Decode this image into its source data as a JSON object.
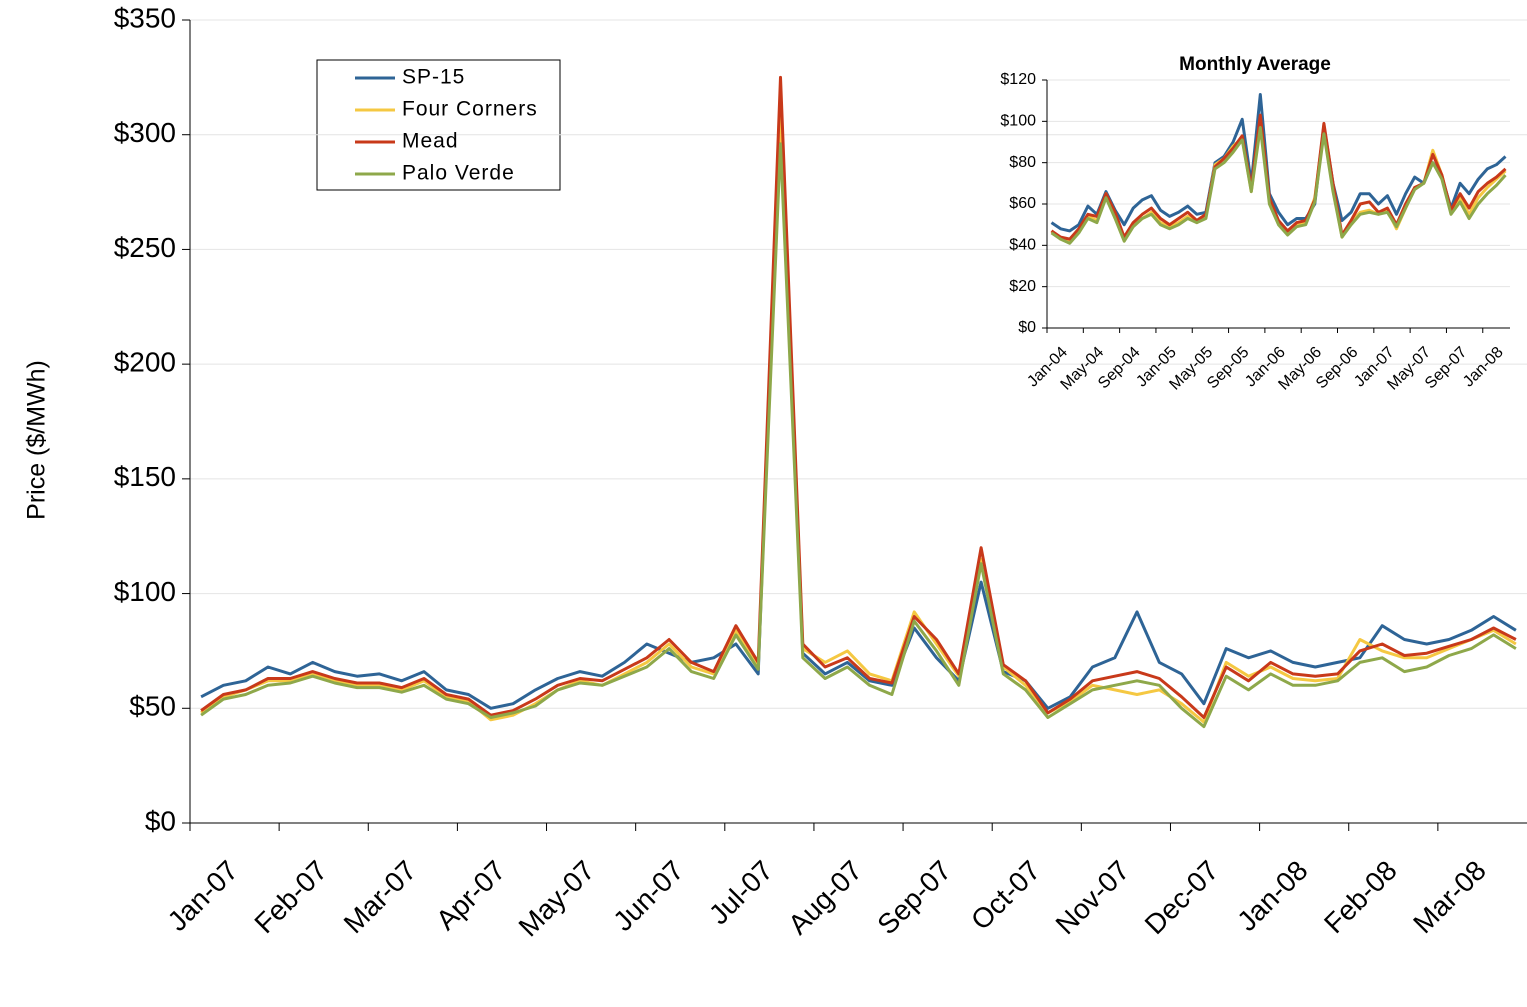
{
  "chart_data": [
    {
      "type": "line",
      "y_label": "Price ($/MWh)",
      "categories": [
        "Jan-07",
        null,
        null,
        null,
        "Feb-07",
        null,
        null,
        null,
        "Mar-07",
        null,
        null,
        null,
        "Apr-07",
        null,
        null,
        null,
        "May-07",
        null,
        null,
        null,
        "Jun-07",
        null,
        null,
        null,
        "Jul-07",
        null,
        null,
        null,
        "Aug-07",
        null,
        null,
        null,
        "Sep-07",
        null,
        null,
        null,
        "Oct-07",
        null,
        null,
        null,
        "Nov-07",
        null,
        null,
        null,
        "Dec-07",
        null,
        null,
        null,
        "Jan-08",
        null,
        null,
        null,
        "Feb-08",
        null,
        null,
        null,
        "Mar-08",
        null,
        null,
        null
      ],
      "series": [
        {
          "name": "SP-15",
          "color": "#2e6496",
          "values": [
            55,
            60,
            62,
            68,
            65,
            70,
            66,
            64,
            65,
            62,
            66,
            58,
            56,
            50,
            52,
            58,
            63,
            66,
            64,
            70,
            78,
            74,
            70,
            72,
            78,
            65,
            320,
            74,
            65,
            70,
            62,
            60,
            85,
            72,
            62,
            105,
            66,
            62,
            50,
            55,
            68,
            72,
            92,
            70,
            65,
            52,
            76,
            72,
            75,
            70,
            68,
            70,
            72,
            86,
            80,
            78,
            80,
            84,
            90,
            84
          ]
        },
        {
          "name": "Four Corners",
          "color": "#f5c842",
          "values": [
            48,
            55,
            58,
            62,
            62,
            65,
            62,
            60,
            60,
            58,
            62,
            55,
            53,
            45,
            47,
            52,
            58,
            62,
            60,
            65,
            70,
            78,
            68,
            65,
            84,
            68,
            310,
            76,
            70,
            75,
            65,
            62,
            92,
            78,
            64,
            115,
            68,
            60,
            48,
            53,
            60,
            58,
            56,
            58,
            52,
            44,
            70,
            64,
            68,
            63,
            62,
            63,
            80,
            75,
            72,
            72,
            76,
            80,
            84,
            78
          ]
        },
        {
          "name": "Mead",
          "color": "#c8391a",
          "values": [
            49,
            56,
            58,
            63,
            63,
            66,
            63,
            61,
            61,
            59,
            63,
            56,
            54,
            47,
            49,
            54,
            60,
            63,
            62,
            67,
            72,
            80,
            70,
            66,
            86,
            70,
            325,
            78,
            68,
            72,
            63,
            61,
            90,
            80,
            65,
            120,
            69,
            62,
            48,
            54,
            62,
            64,
            66,
            63,
            55,
            46,
            68,
            62,
            70,
            65,
            64,
            65,
            75,
            78,
            73,
            74,
            77,
            80,
            85,
            80
          ]
        },
        {
          "name": "Palo Verde",
          "color": "#8ea84a",
          "values": [
            47,
            54,
            56,
            60,
            61,
            64,
            61,
            59,
            59,
            57,
            60,
            54,
            52,
            46,
            48,
            51,
            58,
            61,
            60,
            64,
            68,
            76,
            66,
            63,
            82,
            67,
            296,
            72,
            63,
            68,
            60,
            56,
            88,
            75,
            60,
            113,
            65,
            58,
            46,
            52,
            58,
            60,
            62,
            60,
            50,
            42,
            64,
            58,
            65,
            60,
            60,
            62,
            70,
            72,
            66,
            68,
            73,
            76,
            82,
            76
          ]
        }
      ],
      "ylim": [
        0,
        350
      ],
      "yticks": [
        {
          "value": 0,
          "label": "$0"
        },
        {
          "value": 50,
          "label": "$50"
        },
        {
          "value": 100,
          "label": "$100"
        },
        {
          "value": 150,
          "label": "$150"
        },
        {
          "value": 200,
          "label": "$200"
        },
        {
          "value": 250,
          "label": "$250"
        },
        {
          "value": 300,
          "label": "$300"
        },
        {
          "value": 350,
          "label": "$350"
        }
      ],
      "grid": true,
      "legend": "upper left"
    },
    {
      "type": "line",
      "title": "Monthly Average",
      "categories": [
        "Jan-04",
        null,
        null,
        null,
        "May-04",
        null,
        null,
        null,
        "Sep-04",
        null,
        null,
        null,
        "Jan-05",
        null,
        null,
        null,
        "May-05",
        null,
        null,
        null,
        "Sep-05",
        null,
        null,
        null,
        "Jan-06",
        null,
        null,
        null,
        "May-06",
        null,
        null,
        null,
        "Sep-06",
        null,
        null,
        null,
        "Jan-07",
        null,
        null,
        null,
        "May-07",
        null,
        null,
        null,
        "Sep-07",
        null,
        null,
        null,
        "Jan-08",
        null,
        null
      ],
      "series": [
        {
          "color": "#2e6496",
          "values": [
            51,
            48,
            47,
            50,
            59,
            55,
            66,
            57,
            50,
            58,
            62,
            64,
            57,
            54,
            56,
            59,
            55,
            56,
            80,
            83,
            90,
            101,
            70,
            113,
            65,
            56,
            50,
            53,
            53,
            60,
            98,
            70,
            52,
            56,
            65,
            65,
            60,
            64,
            55,
            65,
            73,
            70,
            80,
            73,
            58,
            70,
            65,
            72,
            77,
            79,
            83
          ]
        },
        {
          "color": "#f5c842",
          "values": [
            47,
            43,
            42,
            47,
            54,
            52,
            65,
            55,
            43,
            50,
            53,
            56,
            51,
            49,
            51,
            54,
            51,
            54,
            79,
            82,
            88,
            92,
            66,
            100,
            61,
            51,
            46,
            50,
            51,
            63,
            97,
            68,
            44,
            51,
            56,
            57,
            55,
            57,
            48,
            58,
            68,
            70,
            86,
            74,
            56,
            63,
            55,
            63,
            68,
            72,
            76
          ]
        },
        {
          "color": "#c8391a",
          "values": [
            47,
            44,
            43,
            48,
            55,
            54,
            65,
            56,
            44,
            51,
            55,
            58,
            53,
            50,
            53,
            56,
            52,
            55,
            78,
            82,
            87,
            93,
            68,
            103,
            63,
            52,
            47,
            51,
            52,
            62,
            99,
            70,
            45,
            52,
            60,
            61,
            56,
            58,
            50,
            60,
            68,
            70,
            84,
            74,
            57,
            65,
            58,
            66,
            70,
            73,
            77
          ]
        },
        {
          "color": "#8ea84a",
          "values": [
            46,
            43,
            41,
            46,
            53,
            51,
            63,
            53,
            42,
            49,
            53,
            55,
            50,
            48,
            50,
            53,
            51,
            53,
            77,
            80,
            85,
            91,
            66,
            97,
            60,
            50,
            45,
            49,
            50,
            61,
            94,
            66,
            44,
            50,
            55,
            56,
            55,
            56,
            49,
            58,
            67,
            70,
            80,
            72,
            55,
            61,
            53,
            60,
            65,
            69,
            74
          ]
        }
      ],
      "ylim": [
        0,
        120
      ],
      "yticks": [
        {
          "value": 0,
          "label": "$0"
        },
        {
          "value": 20,
          "label": "$20"
        },
        {
          "value": 40,
          "label": "$40"
        },
        {
          "value": 60,
          "label": "$60"
        },
        {
          "value": 80,
          "label": "$80"
        },
        {
          "value": 100,
          "label": "$100"
        },
        {
          "value": 120,
          "label": "$120"
        }
      ],
      "grid": true
    }
  ]
}
